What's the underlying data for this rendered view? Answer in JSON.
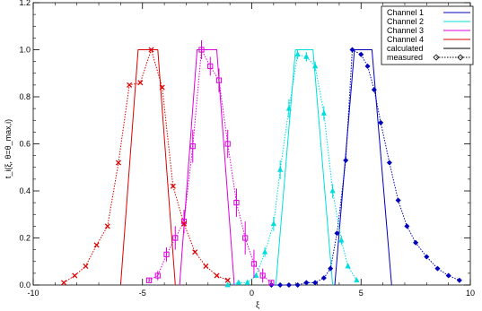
{
  "chart_data": {
    "type": "line",
    "xlabel": "ξ",
    "ylabel": "t_i(ξ, θ=θ_max,i)",
    "xlim": [
      -10,
      10
    ],
    "ylim": [
      0,
      1.2
    ],
    "xticks": [
      -10,
      -5,
      0,
      5,
      10
    ],
    "yticks": [
      0.0,
      0.2,
      0.4,
      0.6,
      0.8,
      1.0,
      1.2
    ],
    "legend_position": "top-right",
    "legend": {
      "channels": [
        {
          "label": "Channel 1",
          "color": "#0000bb"
        },
        {
          "label": "Channel 2",
          "color": "#00dddd"
        },
        {
          "label": "Channel 3",
          "color": "#dd00dd"
        },
        {
          "label": "Channel 4",
          "color": "#dd0000"
        }
      ],
      "calculated_label": "calculated",
      "measured_label": "measured"
    },
    "calculated": [
      {
        "channel": "Channel 1",
        "x": [
          3.8,
          4.7,
          5.5,
          6.4
        ],
        "y": [
          0.0,
          1.0,
          1.0,
          0.0
        ]
      },
      {
        "channel": "Channel 2",
        "x": [
          1.1,
          2.0,
          2.8,
          3.7
        ],
        "y": [
          0.0,
          1.0,
          1.0,
          0.0
        ]
      },
      {
        "channel": "Channel 3",
        "x": [
          -3.3,
          -2.5,
          -1.6,
          -0.8
        ],
        "y": [
          0.0,
          1.0,
          1.0,
          0.0
        ]
      },
      {
        "channel": "Channel 4",
        "x": [
          -6.0,
          -5.2,
          -4.3,
          -3.5
        ],
        "y": [
          0.0,
          1.0,
          1.0,
          0.0
        ]
      }
    ],
    "measured": [
      {
        "channel": "Channel 1",
        "marker": "diamond",
        "x": [
          0.9,
          1.3,
          1.7,
          2.1,
          2.5,
          2.9,
          3.3,
          3.6,
          3.9,
          4.3,
          4.6,
          5.0,
          5.3,
          5.6,
          5.9,
          6.3,
          6.7,
          7.1,
          7.5,
          8.0,
          8.5,
          9.0,
          9.5
        ],
        "y": [
          0.0,
          0.0,
          0.0,
          0.0,
          0.01,
          0.01,
          0.03,
          0.07,
          0.22,
          0.53,
          1.0,
          0.98,
          0.93,
          0.83,
          0.69,
          0.52,
          0.36,
          0.25,
          0.18,
          0.12,
          0.07,
          0.04,
          0.02
        ],
        "err": [
          0,
          0,
          0,
          0,
          0,
          0,
          0,
          0,
          0,
          0,
          0,
          0,
          0,
          0,
          0,
          0,
          0,
          0,
          0,
          0,
          0,
          0,
          0
        ]
      },
      {
        "channel": "Channel 2",
        "marker": "triangle",
        "x": [
          -1.1,
          -0.6,
          -0.2,
          0.2,
          0.6,
          1.0,
          1.3,
          1.7,
          2.1,
          2.5,
          2.9,
          3.3,
          3.7,
          4.1,
          4.4,
          4.8
        ],
        "y": [
          0.0,
          0.01,
          0.01,
          0.04,
          0.14,
          0.26,
          0.49,
          0.75,
          0.98,
          0.97,
          0.93,
          0.73,
          0.4,
          0.19,
          0.08,
          0.02
        ],
        "err": [
          0.0,
          0.0,
          0.0,
          0.01,
          0.02,
          0.03,
          0.04,
          0.04,
          0.02,
          0.02,
          0.02,
          0.03,
          0.03,
          0.02,
          0.01,
          0.0
        ]
      },
      {
        "channel": "Channel 3",
        "marker": "square",
        "x": [
          -4.7,
          -4.3,
          -3.9,
          -3.5,
          -3.1,
          -2.7,
          -2.3,
          -1.9,
          -1.5,
          -1.1,
          -0.7,
          -0.3,
          0.1,
          0.5,
          0.9
        ],
        "y": [
          0.02,
          0.04,
          0.13,
          0.2,
          0.27,
          0.59,
          1.0,
          0.93,
          0.87,
          0.6,
          0.35,
          0.2,
          0.09,
          0.04,
          0.01
        ],
        "err": [
          0.01,
          0.02,
          0.03,
          0.05,
          0.05,
          0.07,
          0.04,
          0.04,
          0.05,
          0.06,
          0.06,
          0.07,
          0.06,
          0.03,
          0.01
        ]
      },
      {
        "channel": "Channel 4",
        "marker": "x",
        "x": [
          -8.6,
          -8.1,
          -7.6,
          -7.1,
          -6.6,
          -6.1,
          -5.6,
          -5.1,
          -4.6,
          -4.1,
          -3.6,
          -3.1,
          -2.6,
          -2.1,
          -1.6,
          -1.1
        ],
        "y": [
          0.01,
          0.04,
          0.08,
          0.17,
          0.25,
          0.52,
          0.85,
          0.86,
          1.0,
          0.84,
          0.42,
          0.26,
          0.14,
          0.08,
          0.04,
          0.02
        ],
        "err": [
          0,
          0,
          0,
          0,
          0,
          0,
          0,
          0,
          0,
          0,
          0,
          0,
          0,
          0,
          0,
          0
        ]
      }
    ]
  }
}
